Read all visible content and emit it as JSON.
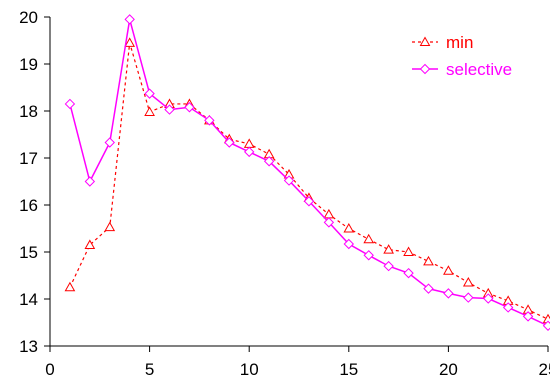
{
  "chart_data": {
    "type": "line",
    "title": "",
    "xlabel": "",
    "ylabel": "",
    "xlim": [
      0,
      25
    ],
    "ylim": [
      13,
      20
    ],
    "x_ticks": [
      0,
      5,
      10,
      15,
      20,
      25
    ],
    "y_ticks": [
      13,
      14,
      15,
      16,
      17,
      18,
      19,
      20
    ],
    "grid": false,
    "legend_position": "top-right",
    "x": [
      1,
      2,
      3,
      4,
      5,
      6,
      7,
      8,
      9,
      10,
      11,
      12,
      13,
      14,
      15,
      16,
      17,
      18,
      19,
      20,
      21,
      22,
      23,
      24,
      25
    ],
    "series": [
      {
        "name": "min",
        "color": "#ff0000",
        "line_style": "dashed",
        "marker": "triangle",
        "values": [
          14.25,
          15.15,
          15.53,
          19.45,
          17.98,
          18.15,
          18.15,
          17.8,
          17.4,
          17.3,
          17.08,
          16.65,
          16.15,
          15.8,
          15.5,
          15.27,
          15.05,
          15.0,
          14.8,
          14.6,
          14.35,
          14.12,
          13.96,
          13.77,
          13.57
        ]
      },
      {
        "name": "selective",
        "color": "#ff00ff",
        "line_style": "solid",
        "marker": "diamond",
        "values": [
          18.15,
          16.5,
          17.33,
          19.95,
          18.37,
          18.03,
          18.08,
          17.8,
          17.33,
          17.13,
          16.93,
          16.52,
          16.08,
          15.63,
          15.17,
          14.93,
          14.7,
          14.55,
          14.22,
          14.12,
          14.03,
          14.01,
          13.82,
          13.63,
          13.43
        ]
      }
    ]
  }
}
